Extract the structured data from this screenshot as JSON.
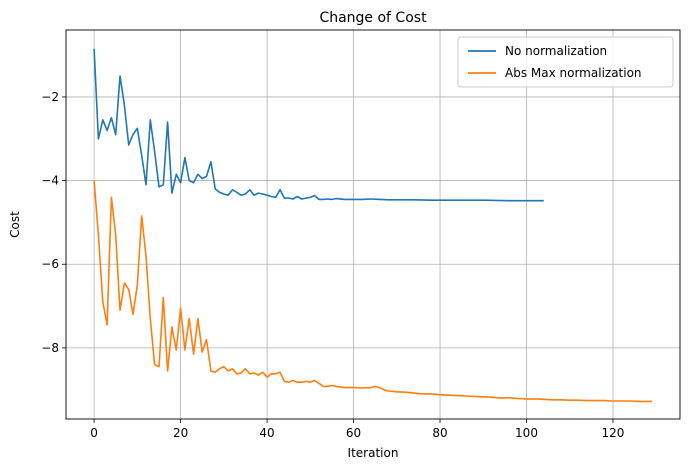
{
  "chart_data": {
    "type": "line",
    "title": "Change of Cost",
    "xlabel": "Iteration",
    "ylabel": "Cost",
    "xlim": [
      -6.5,
      135.5
    ],
    "ylim": [
      -9.7,
      -0.4
    ],
    "xticks": [
      0,
      20,
      40,
      60,
      80,
      100,
      120
    ],
    "yticks": [
      -8,
      -6,
      -4,
      -2
    ],
    "grid": true,
    "legend_position": "top-right",
    "series": [
      {
        "name": "No normalization",
        "color": "#1f77b4",
        "points": [
          [
            0,
            -0.85
          ],
          [
            1,
            -3.0
          ],
          [
            2,
            -2.55
          ],
          [
            3,
            -2.8
          ],
          [
            4,
            -2.5
          ],
          [
            5,
            -2.9
          ],
          [
            6,
            -1.5
          ],
          [
            7,
            -2.2
          ],
          [
            8,
            -3.15
          ],
          [
            9,
            -2.9
          ],
          [
            10,
            -2.75
          ],
          [
            11,
            -3.4
          ],
          [
            12,
            -4.1
          ],
          [
            13,
            -2.55
          ],
          [
            14,
            -3.3
          ],
          [
            15,
            -4.15
          ],
          [
            16,
            -4.1
          ],
          [
            17,
            -2.6
          ],
          [
            18,
            -4.3
          ],
          [
            19,
            -3.85
          ],
          [
            20,
            -4.05
          ],
          [
            21,
            -3.45
          ],
          [
            22,
            -4.0
          ],
          [
            23,
            -4.05
          ],
          [
            24,
            -3.85
          ],
          [
            25,
            -3.95
          ],
          [
            26,
            -3.9
          ],
          [
            27,
            -3.55
          ],
          [
            28,
            -4.2
          ],
          [
            29,
            -4.28
          ],
          [
            30,
            -4.32
          ],
          [
            31,
            -4.35
          ],
          [
            32,
            -4.22
          ],
          [
            33,
            -4.28
          ],
          [
            34,
            -4.35
          ],
          [
            35,
            -4.32
          ],
          [
            36,
            -4.22
          ],
          [
            37,
            -4.35
          ],
          [
            38,
            -4.3
          ],
          [
            39,
            -4.32
          ],
          [
            40,
            -4.35
          ],
          [
            41,
            -4.38
          ],
          [
            42,
            -4.4
          ],
          [
            43,
            -4.22
          ],
          [
            44,
            -4.42
          ],
          [
            45,
            -4.42
          ],
          [
            46,
            -4.44
          ],
          [
            47,
            -4.38
          ],
          [
            48,
            -4.44
          ],
          [
            49,
            -4.42
          ],
          [
            50,
            -4.4
          ],
          [
            51,
            -4.36
          ],
          [
            52,
            -4.45
          ],
          [
            53,
            -4.45
          ],
          [
            54,
            -4.44
          ],
          [
            55,
            -4.45
          ],
          [
            56,
            -4.43
          ],
          [
            58,
            -4.45
          ],
          [
            60,
            -4.45
          ],
          [
            62,
            -4.45
          ],
          [
            64,
            -4.44
          ],
          [
            66,
            -4.45
          ],
          [
            68,
            -4.46
          ],
          [
            70,
            -4.46
          ],
          [
            74,
            -4.46
          ],
          [
            78,
            -4.47
          ],
          [
            84,
            -4.47
          ],
          [
            90,
            -4.47
          ],
          [
            96,
            -4.48
          ],
          [
            100,
            -4.48
          ],
          [
            104,
            -4.48
          ]
        ]
      },
      {
        "name": "Abs Max normalization",
        "color": "#ff7f0e",
        "points": [
          [
            0,
            -4.0
          ],
          [
            1,
            -5.3
          ],
          [
            2,
            -6.9
          ],
          [
            3,
            -7.45
          ],
          [
            4,
            -4.4
          ],
          [
            5,
            -5.3
          ],
          [
            6,
            -7.1
          ],
          [
            7,
            -6.45
          ],
          [
            8,
            -6.6
          ],
          [
            9,
            -7.2
          ],
          [
            10,
            -6.5
          ],
          [
            11,
            -4.85
          ],
          [
            12,
            -5.8
          ],
          [
            13,
            -7.3
          ],
          [
            14,
            -8.4
          ],
          [
            15,
            -8.45
          ],
          [
            16,
            -6.8
          ],
          [
            17,
            -8.55
          ],
          [
            18,
            -7.5
          ],
          [
            19,
            -8.05
          ],
          [
            20,
            -7.05
          ],
          [
            21,
            -8.05
          ],
          [
            22,
            -7.3
          ],
          [
            23,
            -8.15
          ],
          [
            24,
            -7.3
          ],
          [
            25,
            -8.1
          ],
          [
            26,
            -7.8
          ],
          [
            27,
            -8.55
          ],
          [
            28,
            -8.58
          ],
          [
            29,
            -8.5
          ],
          [
            30,
            -8.45
          ],
          [
            31,
            -8.55
          ],
          [
            32,
            -8.5
          ],
          [
            33,
            -8.62
          ],
          [
            34,
            -8.6
          ],
          [
            35,
            -8.5
          ],
          [
            36,
            -8.62
          ],
          [
            37,
            -8.6
          ],
          [
            38,
            -8.65
          ],
          [
            39,
            -8.58
          ],
          [
            40,
            -8.7
          ],
          [
            41,
            -8.62
          ],
          [
            42,
            -8.62
          ],
          [
            43,
            -8.58
          ],
          [
            44,
            -8.8
          ],
          [
            45,
            -8.82
          ],
          [
            46,
            -8.78
          ],
          [
            47,
            -8.82
          ],
          [
            48,
            -8.82
          ],
          [
            49,
            -8.8
          ],
          [
            50,
            -8.82
          ],
          [
            51,
            -8.78
          ],
          [
            52,
            -8.85
          ],
          [
            53,
            -8.92
          ],
          [
            54,
            -8.92
          ],
          [
            55,
            -8.9
          ],
          [
            56,
            -8.92
          ],
          [
            58,
            -8.95
          ],
          [
            60,
            -8.95
          ],
          [
            62,
            -8.96
          ],
          [
            64,
            -8.95
          ],
          [
            65,
            -8.92
          ],
          [
            66,
            -8.95
          ],
          [
            67,
            -9.0
          ],
          [
            68,
            -9.03
          ],
          [
            70,
            -9.05
          ],
          [
            72,
            -9.06
          ],
          [
            74,
            -9.08
          ],
          [
            76,
            -9.1
          ],
          [
            78,
            -9.1
          ],
          [
            80,
            -9.12
          ],
          [
            82,
            -9.13
          ],
          [
            84,
            -9.14
          ],
          [
            86,
            -9.15
          ],
          [
            88,
            -9.16
          ],
          [
            90,
            -9.17
          ],
          [
            92,
            -9.18
          ],
          [
            94,
            -9.2
          ],
          [
            96,
            -9.19
          ],
          [
            98,
            -9.21
          ],
          [
            100,
            -9.22
          ],
          [
            102,
            -9.22
          ],
          [
            104,
            -9.23
          ],
          [
            106,
            -9.24
          ],
          [
            108,
            -9.24
          ],
          [
            110,
            -9.25
          ],
          [
            112,
            -9.25
          ],
          [
            114,
            -9.26
          ],
          [
            116,
            -9.26
          ],
          [
            118,
            -9.26
          ],
          [
            120,
            -9.27
          ],
          [
            122,
            -9.27
          ],
          [
            124,
            -9.27
          ],
          [
            126,
            -9.28
          ],
          [
            129,
            -9.28
          ]
        ]
      }
    ]
  }
}
